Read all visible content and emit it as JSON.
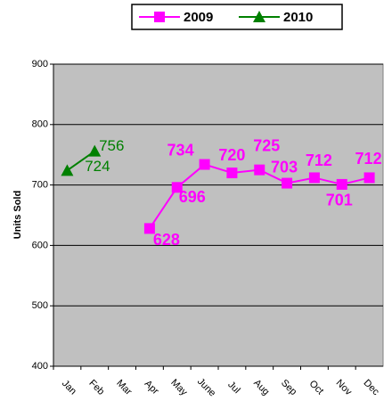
{
  "chart_data": {
    "type": "line",
    "categories": [
      "Jan",
      "Feb",
      "Mar",
      "Apr",
      "May",
      "June",
      "Jul",
      "Aug",
      "Sep",
      "Oct",
      "Nov",
      "Dec"
    ],
    "series": [
      {
        "name": "2009",
        "color": "#ff00ff",
        "marker": "square",
        "values": [
          null,
          null,
          null,
          628,
          696,
          734,
          720,
          725,
          703,
          712,
          701,
          712
        ]
      },
      {
        "name": "2010",
        "color": "#008000",
        "marker": "triangle",
        "values": [
          724,
          756,
          null,
          null,
          null,
          null,
          null,
          null,
          null,
          null,
          null,
          null
        ]
      }
    ],
    "y_label": "Units Sold",
    "ylim": [
      400,
      900
    ],
    "yticks": [
      400,
      500,
      600,
      700,
      800,
      900
    ],
    "grid": true,
    "legend": "top"
  }
}
